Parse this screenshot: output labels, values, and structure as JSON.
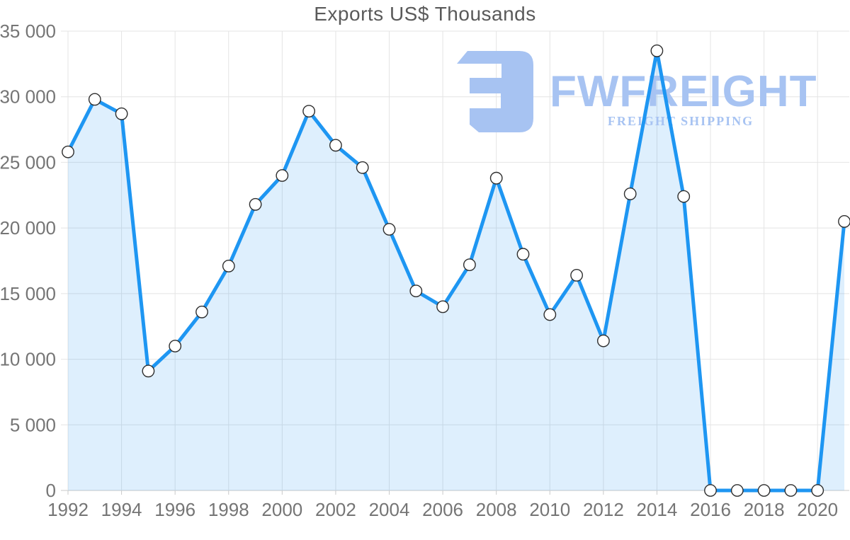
{
  "watermark": {
    "brand": "FWFREIGHT",
    "tagline": "FREIGHT SHIPPING"
  },
  "colors": {
    "line": "#1e96f2",
    "fill": "rgba(33,150,243,0.15)",
    "grid": "#e4e4e4",
    "axis": "#c9c9c9",
    "label": "#757575",
    "title": "#5a5a5a",
    "marker_fill": "#ffffff",
    "marker_stroke": "#2e2e2e",
    "watermark": "#a7c3f2"
  },
  "chart_data": {
    "type": "area",
    "title": "Exports US$ Thousands",
    "x": [
      1992,
      1993,
      1994,
      1995,
      1996,
      1997,
      1998,
      1999,
      2000,
      2001,
      2002,
      2003,
      2004,
      2005,
      2006,
      2007,
      2008,
      2009,
      2010,
      2011,
      2012,
      2013,
      2014,
      2015,
      2016,
      2017,
      2018,
      2019,
      2020,
      2021
    ],
    "values": [
      25800,
      29800,
      28700,
      9100,
      11000,
      13600,
      17100,
      21800,
      24000,
      28900,
      26300,
      24600,
      19900,
      15200,
      14000,
      17200,
      23800,
      18000,
      13400,
      16400,
      11400,
      22600,
      33500,
      22400,
      0,
      0,
      0,
      0,
      0,
      20500
    ],
    "ylim": [
      0,
      35000
    ],
    "ytick_step": 5000,
    "y_tick_labels": [
      "0",
      "5 000",
      "10 000",
      "15 000",
      "20 000",
      "25 000",
      "30 000",
      "35 000"
    ],
    "x_tick_years": [
      1992,
      1994,
      1996,
      1998,
      2000,
      2002,
      2004,
      2006,
      2008,
      2010,
      2012,
      2014,
      2016,
      2018,
      2020
    ],
    "grid": true,
    "legend": false,
    "marker": "circle"
  }
}
